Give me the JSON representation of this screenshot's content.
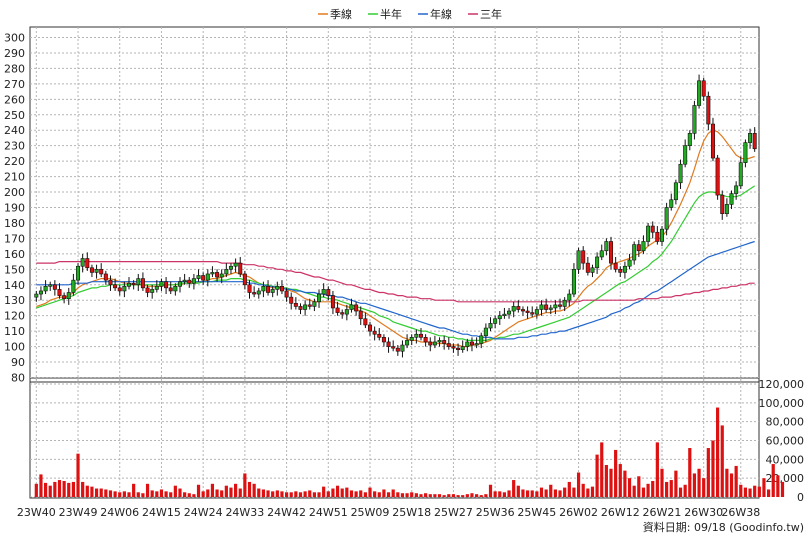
{
  "chart_data": [
    {
      "type": "candlestick",
      "title": "",
      "legend": [
        "季線",
        "半年",
        "年線",
        "三年"
      ],
      "legend_placement": "top-center",
      "colors": {
        "up": "#22aa22",
        "down": "#dd1111",
        "季線": "#e07a20",
        "半年": "#33cc33",
        "年線": "#2266cc",
        "三年": "#cc3366"
      },
      "ylim": [
        80,
        300
      ],
      "yticks": [
        80,
        90,
        100,
        110,
        120,
        130,
        140,
        150,
        160,
        170,
        180,
        190,
        200,
        210,
        220,
        230,
        240,
        250,
        260,
        270,
        280,
        290,
        300
      ],
      "x_ticks": [
        "23W40",
        "23W49",
        "24W06",
        "24W15",
        "24W24",
        "24W33",
        "24W42",
        "24W51",
        "25W09",
        "25W18",
        "25W27",
        "25W36",
        "25W45",
        "26W02",
        "26W12",
        "26W21",
        "26W30",
        "26W38"
      ],
      "x_tick_index": [
        0,
        9,
        18,
        27,
        36,
        45,
        54,
        63,
        72,
        81,
        90,
        99,
        108,
        117,
        126,
        135,
        144,
        152
      ],
      "grid": true,
      "close": [
        134,
        136,
        139,
        140,
        137,
        133,
        131,
        135,
        143,
        152,
        157,
        151,
        148,
        150,
        147,
        143,
        140,
        138,
        136,
        139,
        141,
        140,
        144,
        138,
        135,
        137,
        139,
        142,
        138,
        136,
        139,
        142,
        143,
        141,
        144,
        146,
        143,
        147,
        148,
        145,
        147,
        150,
        152,
        154,
        147,
        140,
        135,
        134,
        136,
        139,
        135,
        137,
        139,
        136,
        132,
        128,
        126,
        124,
        127,
        126,
        129,
        134,
        137,
        133,
        125,
        122,
        121,
        124,
        127,
        123,
        118,
        114,
        110,
        108,
        106,
        103,
        100,
        99,
        97,
        101,
        104,
        106,
        108,
        106,
        103,
        101,
        103,
        104,
        102,
        100,
        99,
        98,
        100,
        103,
        101,
        102,
        107,
        112,
        115,
        118,
        120,
        121,
        123,
        126,
        124,
        123,
        122,
        121,
        124,
        127,
        124,
        125,
        127,
        126,
        130,
        134,
        150,
        162,
        154,
        148,
        151,
        158,
        162,
        168,
        154,
        150,
        148,
        152,
        156,
        166,
        162,
        168,
        178,
        174,
        168,
        176,
        190,
        195,
        206,
        218,
        230,
        238,
        256,
        272,
        262,
        244,
        222,
        198,
        186,
        192,
        199,
        204,
        219,
        232,
        238,
        228
      ],
      "series": [
        {
          "name": "季線",
          "values": [
            126,
            127,
            128,
            130,
            131,
            132,
            132,
            133,
            135,
            138,
            140,
            141,
            142,
            143,
            144,
            144,
            144,
            143,
            142,
            141,
            141,
            140,
            140,
            140,
            139,
            139,
            139,
            139,
            140,
            140,
            140,
            140,
            141,
            141,
            141,
            142,
            142,
            143,
            144,
            144,
            145,
            146,
            147,
            148,
            147,
            146,
            145,
            143,
            141,
            140,
            139,
            138,
            138,
            138,
            137,
            136,
            135,
            133,
            131,
            130,
            129,
            129,
            129,
            129,
            129,
            128,
            127,
            126,
            125,
            124,
            123,
            122,
            120,
            118,
            116,
            114,
            112,
            110,
            108,
            106,
            105,
            104,
            104,
            103,
            103,
            103,
            102,
            102,
            102,
            101,
            101,
            101,
            100,
            100,
            101,
            101,
            102,
            103,
            104,
            106,
            108,
            110,
            112,
            114,
            116,
            117,
            118,
            119,
            120,
            121,
            122,
            122,
            123,
            123,
            124,
            126,
            128,
            132,
            136,
            139,
            141,
            144,
            147,
            151,
            153,
            154,
            155,
            156,
            157,
            159,
            160,
            162,
            165,
            167,
            169,
            171,
            175,
            180,
            186,
            192,
            199,
            206,
            215,
            225,
            233,
            238,
            240,
            239,
            236,
            232,
            228,
            224,
            222,
            221,
            222,
            223
          ]
        },
        {
          "name": "半年",
          "values": [
            125,
            126,
            127,
            128,
            129,
            130,
            131,
            132,
            133,
            135,
            136,
            137,
            138,
            138,
            139,
            139,
            140,
            140,
            140,
            140,
            140,
            140,
            140,
            140,
            140,
            140,
            140,
            140,
            140,
            140,
            140,
            141,
            141,
            141,
            141,
            141,
            142,
            142,
            142,
            143,
            143,
            143,
            144,
            144,
            144,
            143,
            143,
            142,
            141,
            140,
            140,
            139,
            139,
            138,
            138,
            137,
            137,
            136,
            135,
            134,
            133,
            132,
            132,
            131,
            131,
            130,
            129,
            128,
            127,
            126,
            125,
            124,
            123,
            122,
            120,
            119,
            118,
            116,
            115,
            114,
            113,
            112,
            111,
            110,
            110,
            109,
            108,
            107,
            107,
            106,
            106,
            105,
            105,
            104,
            104,
            104,
            104,
            104,
            105,
            105,
            106,
            106,
            107,
            108,
            108,
            109,
            110,
            111,
            112,
            113,
            114,
            115,
            116,
            117,
            118,
            119,
            121,
            123,
            125,
            127,
            129,
            131,
            133,
            135,
            137,
            139,
            141,
            142,
            144,
            146,
            148,
            150,
            152,
            155,
            157,
            160,
            164,
            168,
            173,
            178,
            183,
            188,
            193,
            197,
            199,
            200,
            200,
            199,
            198,
            197,
            197,
            197,
            198,
            200,
            202,
            204
          ]
        },
        {
          "name": "年線",
          "values": [
            140,
            140,
            140,
            140,
            140,
            140,
            140,
            140,
            141,
            141,
            141,
            141,
            142,
            142,
            142,
            142,
            142,
            142,
            142,
            142,
            142,
            142,
            142,
            142,
            142,
            142,
            142,
            142,
            142,
            142,
            142,
            142,
            142,
            142,
            142,
            142,
            142,
            142,
            142,
            142,
            142,
            142,
            142,
            142,
            142,
            142,
            141,
            141,
            140,
            140,
            139,
            139,
            138,
            138,
            137,
            137,
            136,
            136,
            135,
            135,
            135,
            134,
            134,
            133,
            133,
            132,
            132,
            131,
            130,
            129,
            128,
            128,
            127,
            126,
            125,
            124,
            123,
            122,
            121,
            120,
            119,
            118,
            117,
            116,
            115,
            114,
            113,
            112,
            112,
            111,
            110,
            109,
            108,
            108,
            107,
            107,
            106,
            106,
            106,
            105,
            105,
            105,
            105,
            105,
            106,
            106,
            106,
            107,
            107,
            108,
            108,
            109,
            109,
            110,
            110,
            111,
            112,
            113,
            114,
            115,
            116,
            117,
            118,
            119,
            121,
            122,
            123,
            125,
            126,
            128,
            129,
            131,
            133,
            135,
            136,
            138,
            140,
            142,
            144,
            146,
            148,
            150,
            152,
            154,
            156,
            158,
            159,
            160,
            161,
            162,
            163,
            164,
            165,
            166,
            167,
            168
          ]
        },
        {
          "name": "三年",
          "values": [
            154,
            154,
            154,
            154,
            154,
            155,
            155,
            155,
            155,
            155,
            155,
            155,
            155,
            155,
            155,
            155,
            155,
            155,
            155,
            155,
            155,
            155,
            155,
            155,
            155,
            155,
            155,
            155,
            155,
            155,
            155,
            155,
            155,
            155,
            155,
            155,
            155,
            155,
            155,
            155,
            154,
            154,
            154,
            154,
            154,
            153,
            153,
            153,
            152,
            152,
            151,
            151,
            150,
            150,
            149,
            149,
            148,
            148,
            147,
            146,
            145,
            145,
            144,
            143,
            143,
            142,
            141,
            140,
            140,
            139,
            138,
            137,
            137,
            136,
            135,
            135,
            134,
            134,
            133,
            133,
            132,
            132,
            132,
            131,
            131,
            131,
            130,
            130,
            130,
            130,
            130,
            129,
            129,
            129,
            129,
            129,
            129,
            129,
            129,
            129,
            129,
            129,
            129,
            129,
            129,
            129,
            129,
            129,
            129,
            129,
            129,
            129,
            129,
            129,
            129,
            129,
            129,
            129,
            130,
            130,
            130,
            130,
            130,
            130,
            130,
            130,
            130,
            130,
            130,
            130,
            131,
            131,
            131,
            131,
            131,
            132,
            132,
            132,
            133,
            133,
            134,
            134,
            135,
            135,
            136,
            136,
            137,
            137,
            138,
            138,
            139,
            139,
            140,
            140,
            141,
            141
          ]
        }
      ]
    },
    {
      "type": "bar",
      "name": "volume",
      "ylim": [
        0,
        120000
      ],
      "yticks": [
        0,
        20000,
        40000,
        60000,
        80000,
        100000,
        120000
      ],
      "ytick_labels": [
        "0",
        "20,000",
        "40,000",
        "60,000",
        "80,000",
        "100,000",
        "120,000"
      ],
      "color": "#dd1111",
      "values": [
        14000,
        24000,
        15000,
        12000,
        16000,
        18000,
        17000,
        15000,
        16000,
        46000,
        16000,
        12000,
        11000,
        9000,
        9000,
        8000,
        7000,
        6000,
        5000,
        6000,
        5000,
        14000,
        5000,
        4000,
        14000,
        7000,
        6000,
        8000,
        6000,
        5000,
        12000,
        9000,
        5000,
        4000,
        3000,
        13000,
        6000,
        8000,
        14000,
        8000,
        7000,
        12000,
        10000,
        14000,
        9000,
        25000,
        16000,
        14000,
        9000,
        8000,
        7000,
        6000,
        7000,
        6000,
        5000,
        5000,
        6000,
        5000,
        6000,
        7000,
        5000,
        5000,
        11000,
        6000,
        9000,
        12000,
        9000,
        10000,
        7000,
        6000,
        7000,
        5000,
        10000,
        6000,
        5000,
        8000,
        5000,
        8000,
        5000,
        4000,
        4000,
        5000,
        4000,
        3000,
        4000,
        3000,
        3000,
        3000,
        2000,
        3000,
        3000,
        2000,
        2000,
        3000,
        4000,
        3000,
        2000,
        3000,
        13000,
        6000,
        6000,
        5000,
        7000,
        18000,
        12000,
        8000,
        7000,
        7000,
        6000,
        10000,
        8000,
        13000,
        8000,
        7000,
        10000,
        16000,
        10000,
        26000,
        14000,
        9000,
        11000,
        45000,
        58000,
        34000,
        30000,
        50000,
        35000,
        28000,
        20000,
        12000,
        22000,
        10000,
        14000,
        17000,
        58000,
        30000,
        16000,
        18000,
        28000,
        10000,
        13000,
        52000,
        25000,
        30000,
        20000,
        52000,
        60000,
        95000,
        76000,
        30000,
        25000,
        33000,
        13000,
        10000,
        9000,
        12000,
        11000,
        20000,
        8000,
        35000,
        23000,
        16000
      ]
    }
  ],
  "source_label": "資料日期: 09/18  (Goodinfo.tw)"
}
